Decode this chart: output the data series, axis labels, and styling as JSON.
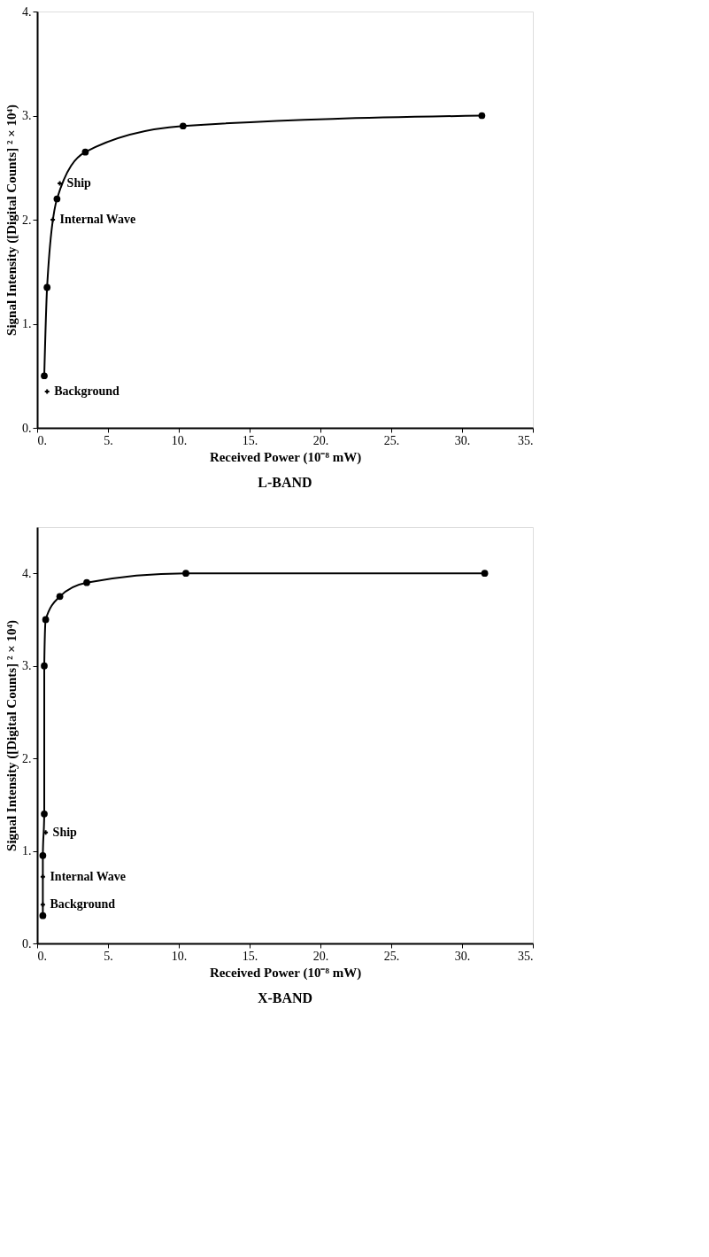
{
  "chart_data": [
    {
      "type": "line",
      "title": "L-BAND",
      "xlabel": "Received Power (10⁻⁸ mW)",
      "ylabel": "Signal Intensity ([Digital Counts] ² × 10⁴)",
      "marker": "circle",
      "series": [
        {
          "color": "#000000",
          "x": [
            0.5,
            0.7,
            1.4,
            3.4,
            10.3,
            31.4
          ],
          "values": [
            0.5,
            1.35,
            2.2,
            2.65,
            2.9,
            3.0
          ]
        }
      ],
      "xlim": [
        0,
        35
      ],
      "ylim": [
        0,
        4
      ],
      "xticks": [
        {
          "value": 0,
          "label": "0."
        },
        {
          "value": 5,
          "label": "5."
        },
        {
          "value": 10,
          "label": "10."
        },
        {
          "value": 15,
          "label": "15."
        },
        {
          "value": 20,
          "label": "20."
        },
        {
          "value": 25,
          "label": "25."
        },
        {
          "value": 30,
          "label": "30."
        },
        {
          "value": 35,
          "label": "35."
        }
      ],
      "yticks": [
        {
          "value": 0,
          "label": "0."
        },
        {
          "value": 1,
          "label": "1."
        },
        {
          "value": 2,
          "label": "2."
        },
        {
          "value": 3,
          "label": "3."
        },
        {
          "value": 4,
          "label": "4."
        }
      ],
      "annotations": [
        {
          "text": "Ship",
          "x": 1.6,
          "y": 2.35
        },
        {
          "text": "Internal Wave",
          "x": 1.1,
          "y": 2.0
        },
        {
          "text": "Background",
          "x": 0.7,
          "y": 0.35
        }
      ]
    },
    {
      "type": "line",
      "title": "X-BAND",
      "xlabel": "Received Power (10⁻⁸ mW)",
      "ylabel": "Signal Intensity ([Digital Counts] ² × 10⁴)",
      "marker": "circle",
      "series": [
        {
          "color": "#000000",
          "x": [
            0.4,
            0.4,
            0.5,
            0.5,
            0.6,
            1.6,
            3.5,
            10.5,
            31.6
          ],
          "values": [
            0.3,
            0.95,
            1.4,
            3.0,
            3.5,
            3.75,
            3.9,
            4.0,
            4.0
          ]
        }
      ],
      "xlim": [
        0,
        35
      ],
      "ylim": [
        0,
        4.5
      ],
      "xticks": [
        {
          "value": 0,
          "label": "0."
        },
        {
          "value": 5,
          "label": "5."
        },
        {
          "value": 10,
          "label": "10."
        },
        {
          "value": 15,
          "label": "15."
        },
        {
          "value": 20,
          "label": "20."
        },
        {
          "value": 25,
          "label": "25."
        },
        {
          "value": 30,
          "label": "30."
        },
        {
          "value": 35,
          "label": "35."
        }
      ],
      "yticks": [
        {
          "value": 0,
          "label": "0."
        },
        {
          "value": 1,
          "label": "1."
        },
        {
          "value": 2,
          "label": "2."
        },
        {
          "value": 3,
          "label": "3."
        },
        {
          "value": 4,
          "label": "4."
        }
      ],
      "annotations": [
        {
          "text": "Ship",
          "x": 0.6,
          "y": 1.2
        },
        {
          "text": "Internal Wave",
          "x": 0.4,
          "y": 0.72
        },
        {
          "text": "Background",
          "x": 0.4,
          "y": 0.42
        }
      ]
    }
  ]
}
